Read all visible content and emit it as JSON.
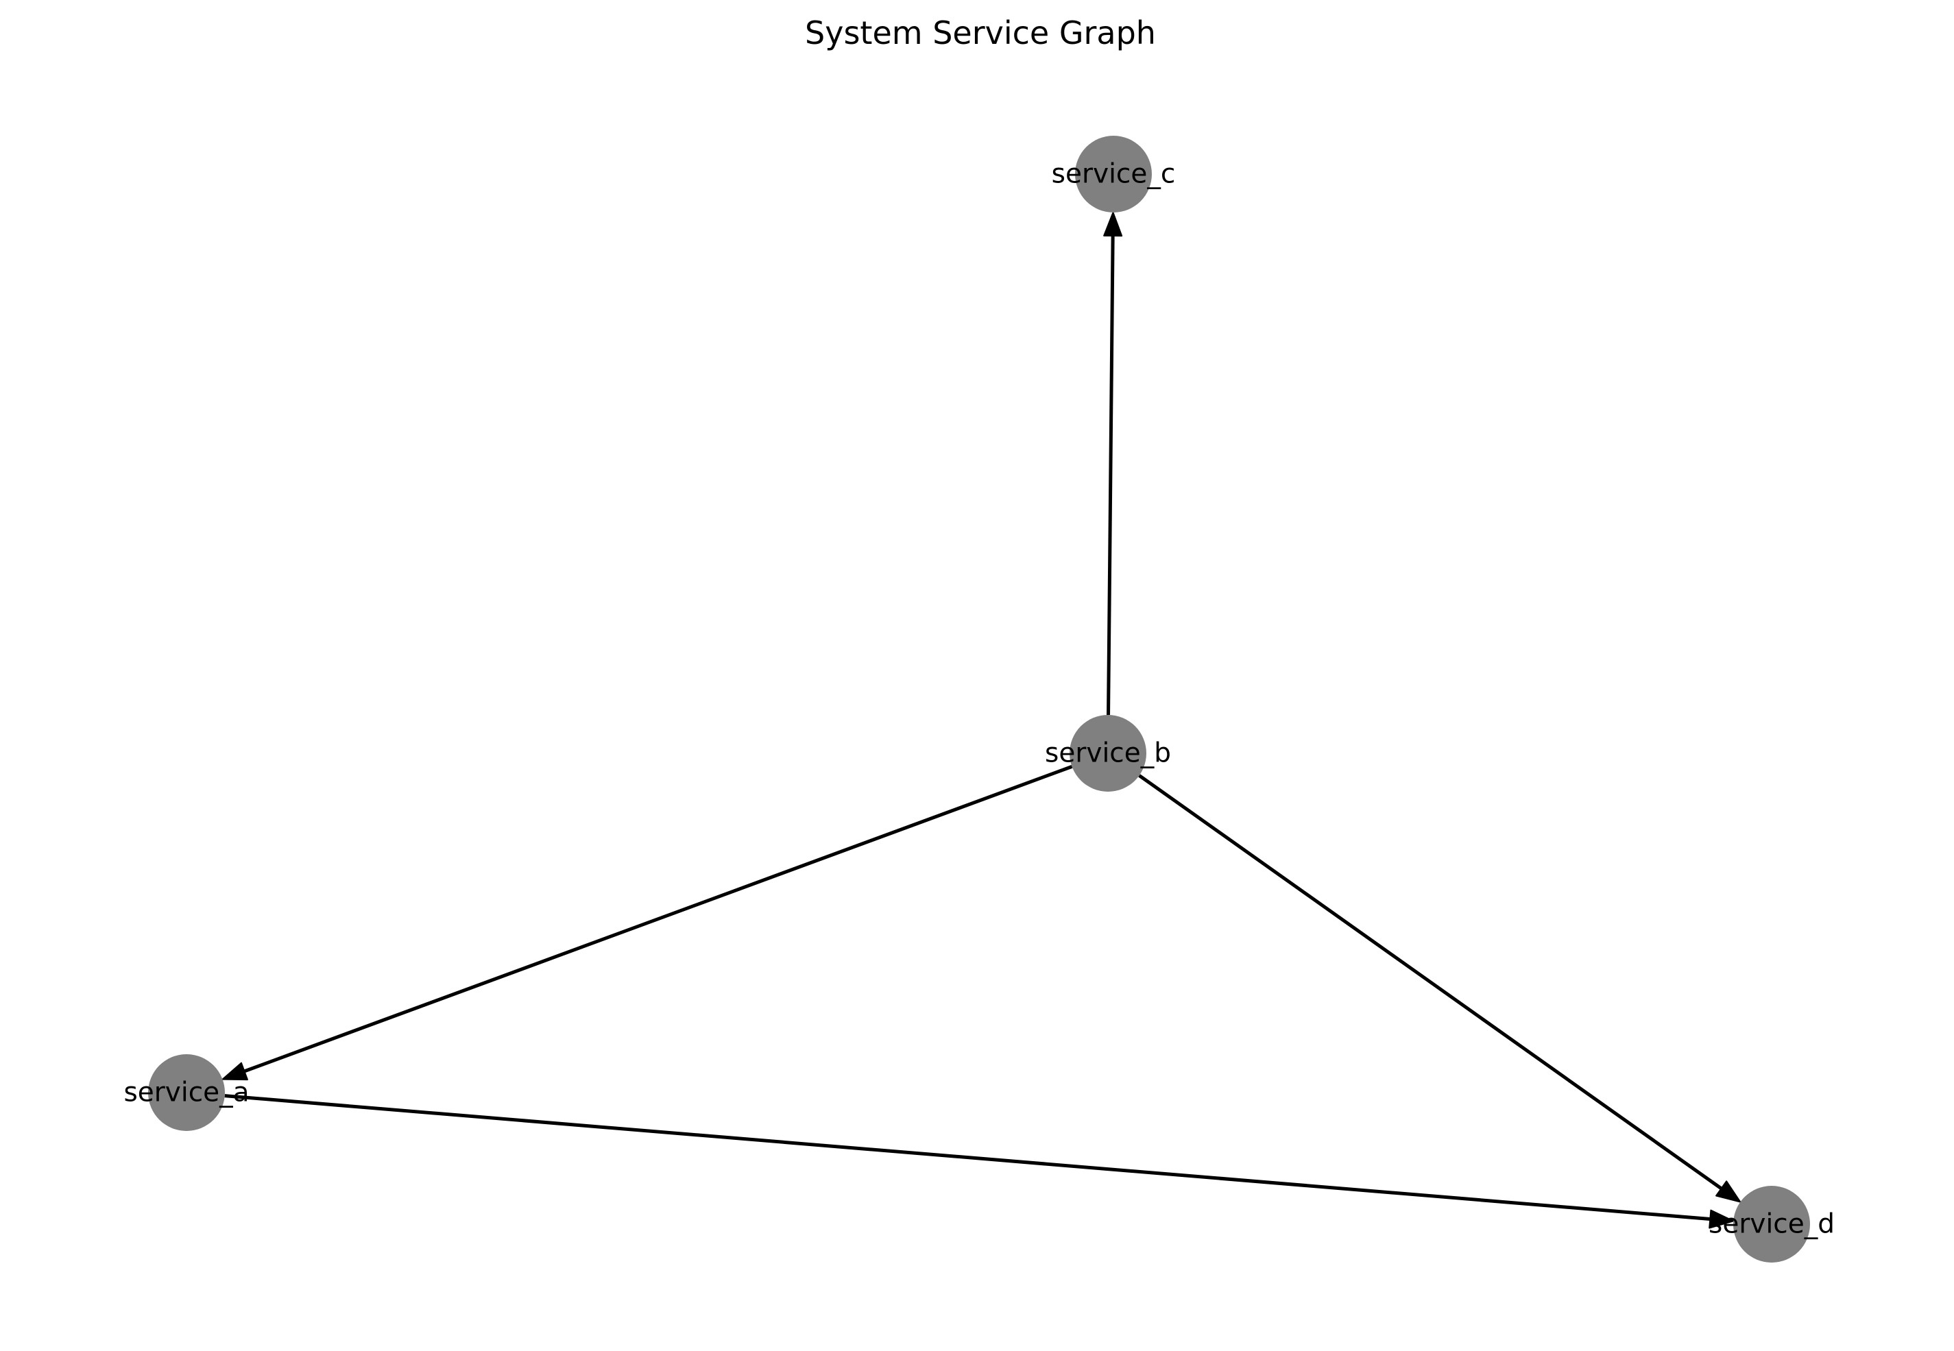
{
  "title": "System Service Graph",
  "colors": {
    "node": "#808080",
    "edge": "#000000",
    "label": "#000000"
  },
  "nodes": [
    {
      "id": "service_a",
      "label": "service_a"
    },
    {
      "id": "service_b",
      "label": "service_b"
    },
    {
      "id": "service_c",
      "label": "service_c"
    },
    {
      "id": "service_d",
      "label": "service_d"
    }
  ],
  "edges": [
    {
      "from": "service_b",
      "to": "service_c"
    },
    {
      "from": "service_b",
      "to": "service_a"
    },
    {
      "from": "service_b",
      "to": "service_d"
    },
    {
      "from": "service_a",
      "to": "service_d"
    }
  ]
}
